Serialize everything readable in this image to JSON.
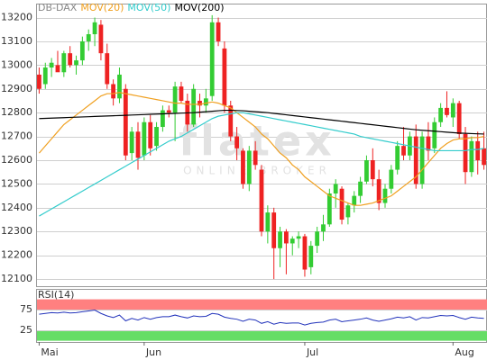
{
  "chart_data": [
    {
      "type": "candlestick",
      "watermark": {
        "text": "flatex",
        "subtext": "ONLINE BROKER"
      },
      "candles": {
        "name": "DB-DAX",
        "color": "#888888",
        "up_color": "#33cc33",
        "down_color": "#ee2222",
        "open": [
          12960,
          12920,
          12990,
          13000,
          12970,
          13050,
          13000,
          13020,
          13100,
          13130,
          13170,
          13050,
          12920,
          12860,
          12900,
          12630,
          12720,
          12620,
          12760,
          12660,
          12740,
          12810,
          12800,
          12910,
          12850,
          12750,
          12850,
          12830,
          12870,
          13180,
          13070,
          12830,
          12700,
          12640,
          12500,
          12640,
          12560,
          12300,
          12380,
          12230,
          12300,
          12250,
          12270,
          12280,
          12150,
          12240,
          12300,
          12330,
          12460,
          12480,
          12360,
          12410,
          12450,
          12510,
          12600,
          12520,
          12420,
          12480,
          12560,
          12660,
          12620,
          12700,
          12500,
          12700,
          12650,
          12760,
          12820,
          12780,
          12840,
          12710,
          12550,
          12680,
          12650
        ],
        "high": [
          12990,
          13010,
          13030,
          13060,
          13060,
          13080,
          13040,
          13120,
          13150,
          13200,
          13190,
          13090,
          12940,
          12990,
          12920,
          12740,
          12760,
          12780,
          12790,
          12760,
          12830,
          12830,
          12930,
          12930,
          12880,
          12920,
          12880,
          12900,
          13210,
          13200,
          13100,
          12850,
          12740,
          12650,
          12660,
          12680,
          12580,
          12410,
          12400,
          12320,
          12310,
          12280,
          12300,
          12290,
          12260,
          12320,
          12370,
          12480,
          12520,
          12490,
          12420,
          12470,
          12530,
          12620,
          12650,
          12560,
          12500,
          12580,
          12680,
          12740,
          12720,
          12750,
          12720,
          12760,
          12780,
          12840,
          12890,
          12860,
          12850,
          12740,
          12700,
          12720,
          12720
        ],
        "low": [
          12880,
          12900,
          12950,
          12980,
          12950,
          12990,
          12960,
          13000,
          13060,
          13080,
          13020,
          12900,
          12830,
          12840,
          12600,
          12600,
          12560,
          12600,
          12620,
          12640,
          12720,
          12780,
          12680,
          12840,
          12720,
          12740,
          12780,
          12800,
          12850,
          13080,
          12800,
          12680,
          12600,
          12480,
          12470,
          12560,
          12280,
          12250,
          12100,
          12150,
          12120,
          12200,
          12230,
          12110,
          12120,
          12210,
          12260,
          12320,
          12400,
          12330,
          12330,
          12380,
          12420,
          12500,
          12490,
          12390,
          12400,
          12460,
          12540,
          12600,
          12600,
          12480,
          12480,
          12600,
          12630,
          12740,
          12780,
          12740,
          12690,
          12500,
          12530,
          12540,
          12560
        ],
        "close": [
          12900,
          12990,
          13010,
          12970,
          13050,
          13000,
          13020,
          13100,
          13130,
          13180,
          13050,
          12920,
          12860,
          12960,
          12620,
          12720,
          12610,
          12760,
          12650,
          12740,
          12810,
          12800,
          12910,
          12850,
          12750,
          12900,
          12830,
          12860,
          13180,
          13100,
          12830,
          12700,
          12650,
          12500,
          12640,
          12580,
          12300,
          12380,
          12230,
          12300,
          12250,
          12270,
          12280,
          12140,
          12240,
          12300,
          12330,
          12460,
          12500,
          12350,
          12410,
          12450,
          12510,
          12600,
          12520,
          12420,
          12480,
          12560,
          12660,
          12620,
          12700,
          12500,
          12700,
          12640,
          12760,
          12820,
          12790,
          12840,
          12710,
          12550,
          12680,
          12600,
          12580
        ]
      },
      "series": [
        {
          "name": "MOV(20)",
          "color": "#f0a020",
          "values": [
            12630,
            12660,
            12690,
            12720,
            12750,
            12770,
            12790,
            12810,
            12830,
            12850,
            12870,
            12880,
            12880,
            12885,
            12880,
            12875,
            12870,
            12865,
            12860,
            12855,
            12850,
            12845,
            12840,
            12840,
            12835,
            12835,
            12835,
            12840,
            12845,
            12840,
            12830,
            12820,
            12800,
            12780,
            12760,
            12740,
            12710,
            12690,
            12660,
            12630,
            12610,
            12580,
            12560,
            12530,
            12510,
            12490,
            12470,
            12450,
            12440,
            12430,
            12420,
            12410,
            12410,
            12415,
            12420,
            12430,
            12440,
            12450,
            12470,
            12490,
            12510,
            12530,
            12560,
            12590,
            12620,
            12650,
            12670,
            12685,
            12690,
            12690,
            12695,
            12695,
            12700
          ]
        },
        {
          "name": "MOV(50)",
          "color": "#33cccc",
          "values": [
            12365,
            12380,
            12395,
            12410,
            12425,
            12440,
            12455,
            12470,
            12485,
            12500,
            12515,
            12530,
            12545,
            12560,
            12575,
            12590,
            12605,
            12620,
            12635,
            12650,
            12665,
            12680,
            12690,
            12700,
            12715,
            12730,
            12745,
            12760,
            12775,
            12785,
            12790,
            12795,
            12800,
            12800,
            12795,
            12790,
            12785,
            12780,
            12775,
            12770,
            12765,
            12760,
            12755,
            12750,
            12745,
            12740,
            12735,
            12730,
            12725,
            12720,
            12715,
            12710,
            12700,
            12695,
            12690,
            12685,
            12680,
            12675,
            12670,
            12665,
            12660,
            12655,
            12650,
            12645,
            12640,
            12640,
            12640,
            12640,
            12640,
            12640,
            12645,
            12645,
            12650
          ]
        },
        {
          "name": "MOV(200)",
          "color": "#000000",
          "values": [
            12775,
            12776,
            12777,
            12778,
            12779,
            12780,
            12781,
            12782,
            12783,
            12784,
            12785,
            12786,
            12787,
            12788,
            12789,
            12790,
            12791,
            12792,
            12793,
            12794,
            12795,
            12796,
            12797,
            12798,
            12799,
            12800,
            12802,
            12804,
            12806,
            12808,
            12810,
            12810,
            12809,
            12808,
            12806,
            12804,
            12802,
            12800,
            12797,
            12794,
            12791,
            12788,
            12785,
            12782,
            12779,
            12776,
            12773,
            12770,
            12767,
            12764,
            12761,
            12758,
            12755,
            12752,
            12749,
            12746,
            12743,
            12740,
            12737,
            12734,
            12731,
            12728,
            12726,
            12724,
            12722,
            12720,
            12718,
            12716,
            12714,
            12713,
            12712,
            12711,
            12710
          ]
        }
      ],
      "ylim": [
        12070,
        13255
      ],
      "yticks": [
        12100,
        12200,
        12300,
        12400,
        12500,
        12600,
        12700,
        12800,
        12900,
        13000,
        13100,
        13200
      ],
      "grid": true
    },
    {
      "type": "line",
      "categories": [
        "Mai",
        null,
        null,
        null,
        null,
        null,
        null,
        null,
        null,
        null,
        null,
        null,
        null,
        null,
        null,
        null,
        null,
        "Jun",
        null,
        null,
        null,
        null,
        null,
        null,
        null,
        null,
        null,
        null,
        null,
        null,
        null,
        null,
        null,
        null,
        null,
        null,
        null,
        null,
        null,
        null,
        null,
        null,
        null,
        "Jul",
        null,
        null,
        null,
        null,
        null,
        null,
        null,
        null,
        null,
        null,
        null,
        null,
        null,
        null,
        null,
        null,
        null,
        null,
        null,
        null,
        null,
        null,
        null,
        "Aug",
        null,
        null,
        null,
        null,
        null
      ],
      "series": [
        {
          "name": "RSI(14)",
          "color": "#2233bb",
          "values": [
            64,
            66,
            68,
            67,
            69,
            67,
            68,
            70,
            72,
            74,
            66,
            60,
            56,
            62,
            48,
            54,
            50,
            56,
            52,
            56,
            58,
            58,
            62,
            58,
            55,
            60,
            58,
            59,
            66,
            64,
            57,
            54,
            52,
            47,
            52,
            50,
            42,
            46,
            40,
            44,
            42,
            43,
            43,
            38,
            42,
            44,
            45,
            50,
            52,
            46,
            48,
            50,
            52,
            55,
            50,
            47,
            50,
            53,
            57,
            55,
            58,
            50,
            56,
            55,
            58,
            61,
            60,
            61,
            56,
            52,
            57,
            55,
            54
          ]
        }
      ],
      "bands": [
        {
          "from": 75,
          "to": 100,
          "color": "#ff8080"
        },
        {
          "from": 0,
          "to": 25,
          "color": "#66dd66"
        }
      ],
      "ylim": [
        -3,
        123
      ],
      "yticks": [
        25,
        75
      ],
      "grid": true
    }
  ]
}
